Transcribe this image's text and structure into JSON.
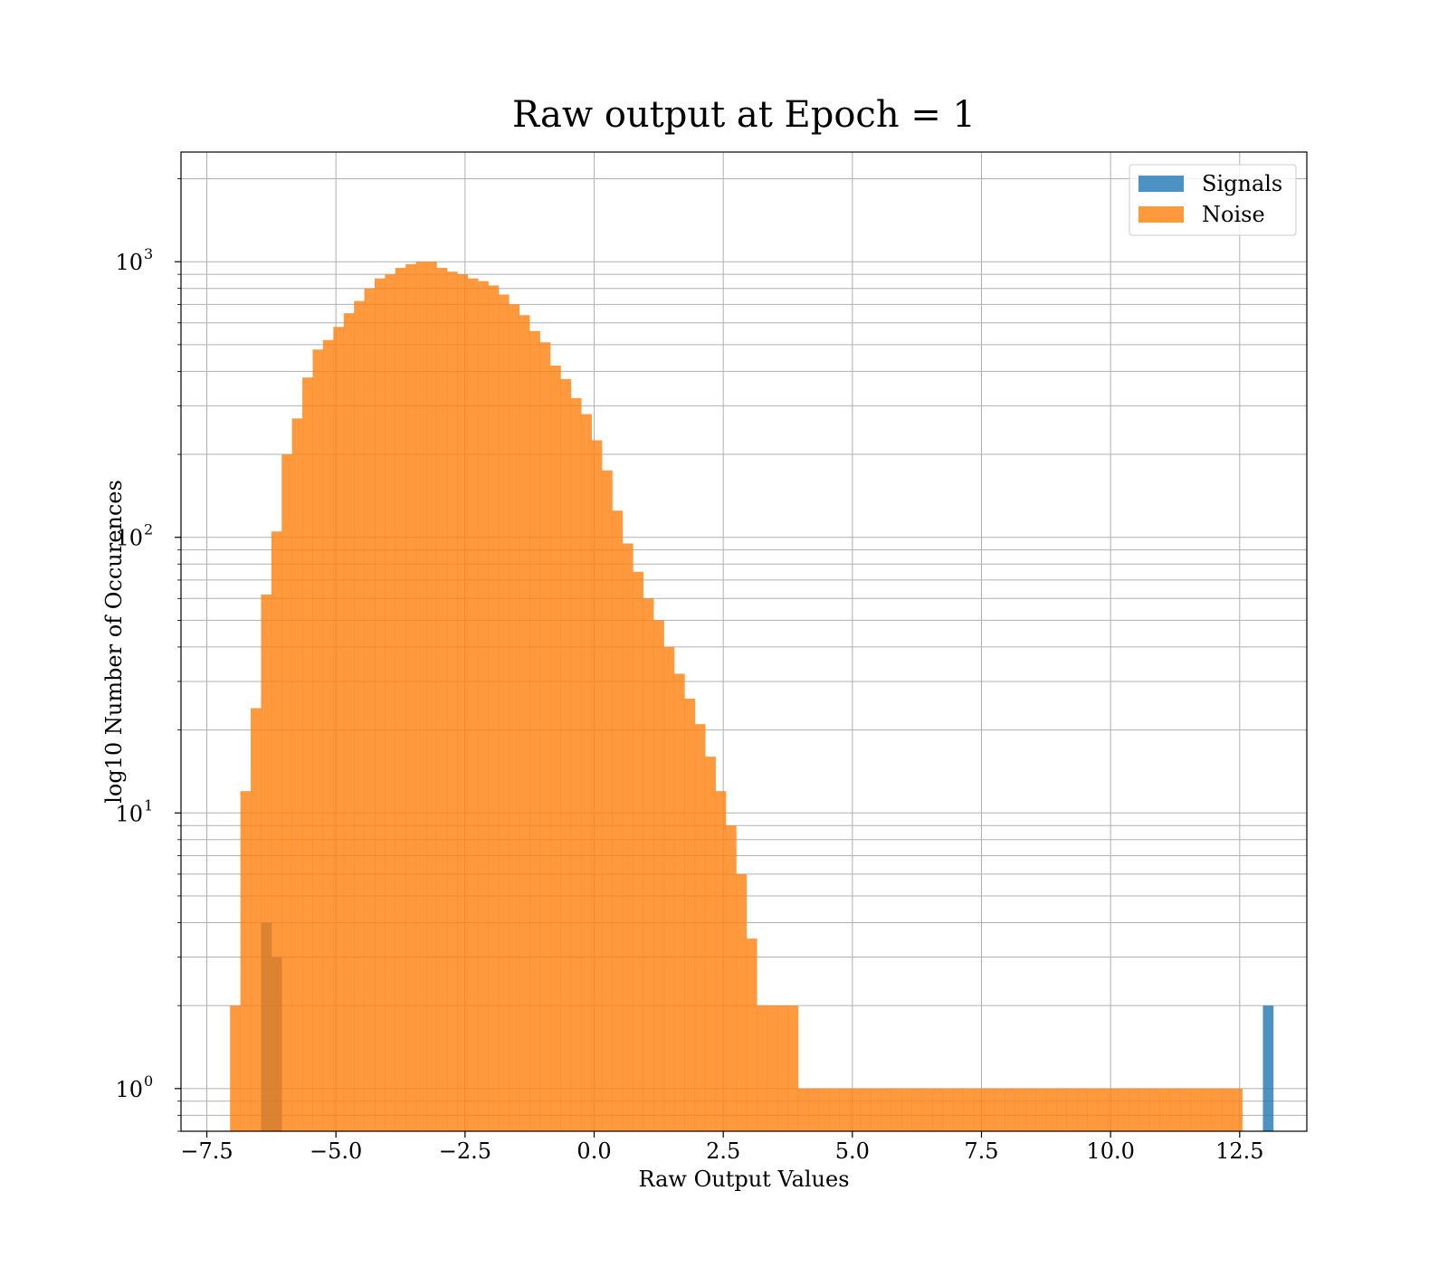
{
  "chart_data": {
    "type": "histogram",
    "title": "Raw output at Epoch = 1",
    "xlabel": "Raw Output Values",
    "ylabel": "log10 Number of Occurences",
    "yscale": "log",
    "xlim": [
      -8.0,
      13.8
    ],
    "ylim": [
      0.7,
      2500
    ],
    "grid": true,
    "legend_position": "top-right",
    "x_ticks": [
      "−7.5",
      "−5.0",
      "−2.5",
      "0.0",
      "2.5",
      "5.0",
      "7.5",
      "10.0",
      "12.5"
    ],
    "y_ticks": [
      {
        "base": "10",
        "exp": "0",
        "value": 1
      },
      {
        "base": "10",
        "exp": "1",
        "value": 10
      },
      {
        "base": "10",
        "exp": "2",
        "value": 100
      },
      {
        "base": "10",
        "exp": "3",
        "value": 1000
      }
    ],
    "series": [
      {
        "name": "Signals",
        "color": "#1f77b4",
        "bin_start": -6.45,
        "bin_width": 0.2,
        "counts": [
          4,
          3,
          0,
          0,
          0,
          0,
          0,
          0,
          0,
          0,
          0,
          0,
          0,
          0,
          0,
          0,
          0,
          0,
          0,
          0,
          0,
          0,
          0,
          0,
          0,
          0,
          0,
          0,
          0,
          0,
          0,
          0,
          0,
          0,
          0,
          0,
          0,
          0,
          0,
          0,
          0,
          0,
          0,
          0,
          0,
          0,
          0,
          0,
          0,
          0,
          0,
          0,
          0,
          0,
          0,
          0,
          0,
          0,
          0,
          0,
          0,
          0,
          0,
          0,
          0,
          0,
          0,
          0,
          0,
          0,
          0,
          0,
          0,
          0,
          0,
          0,
          0,
          0,
          0,
          0,
          0,
          0,
          0,
          0,
          0,
          0,
          0,
          0,
          0,
          0,
          0,
          0,
          0,
          0,
          0,
          0,
          0,
          2
        ]
      },
      {
        "name": "Noise",
        "color": "#ff7f0e",
        "bin_start": -7.05,
        "bin_width": 0.2,
        "counts": [
          2,
          12,
          24,
          62,
          105,
          200,
          270,
          380,
          480,
          520,
          580,
          650,
          720,
          800,
          870,
          900,
          950,
          980,
          1000,
          1000,
          950,
          920,
          900,
          870,
          850,
          820,
          760,
          700,
          640,
          560,
          510,
          420,
          375,
          320,
          280,
          225,
          175,
          125,
          95,
          75,
          60,
          50,
          40,
          32,
          26,
          21,
          16,
          12,
          9,
          6,
          3.5,
          2,
          2,
          2,
          2,
          1,
          1,
          1,
          1,
          1,
          1,
          1,
          1,
          1,
          1,
          1,
          1,
          1,
          1,
          1,
          1,
          1,
          1,
          1,
          1,
          1,
          1,
          1,
          1,
          1,
          1,
          1,
          1,
          1,
          1,
          1,
          1,
          1,
          1,
          1,
          1,
          1,
          1,
          1,
          1,
          1,
          1,
          1
        ]
      }
    ]
  }
}
